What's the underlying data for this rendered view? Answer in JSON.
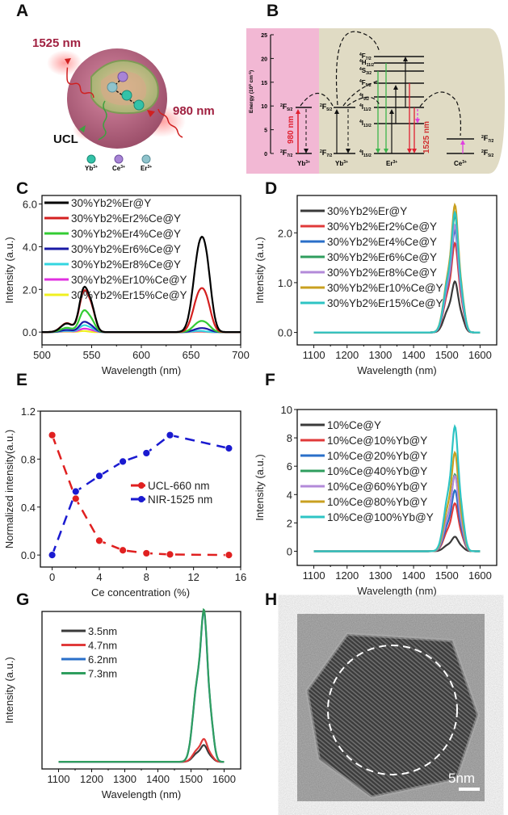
{
  "panels": {
    "A": {
      "letter": "A",
      "labels": {
        "emission_nir": "1525 nm",
        "excitation": "980 nm",
        "ucl": "UCL"
      },
      "ions": [
        {
          "name": "Yb",
          "sup": "3+",
          "color": "#33c2a8"
        },
        {
          "name": "Ce",
          "sup": "3+",
          "color": "#a884d6"
        },
        {
          "name": "Er",
          "sup": "3+",
          "color": "#8fc3cc"
        }
      ]
    },
    "B": {
      "letter": "B",
      "yaxis_label": "Energy (10",
      "yaxis_label_sup": "3",
      "yaxis_label_end": " cm",
      "yaxis_label_sup2": "-1",
      "yaxis_label_close": ")",
      "yticks": [
        "0",
        "5",
        "10",
        "15",
        "20",
        "25"
      ],
      "excitation_label": "980 nm",
      "emission_label": "1525 nm",
      "species": [
        "Yb",
        "Yb",
        "Er",
        "Ce"
      ],
      "species_sup": "3+",
      "levels": {
        "yb_upper": "F",
        "yb_upper_pre": "2",
        "yb_upper_sub": "5/2",
        "yb_lower": "F",
        "yb_lower_pre": "2",
        "yb_lower_sub": "7/2",
        "er": [
          {
            "pre": "4",
            "term": "F",
            "sub": "7/2"
          },
          {
            "pre": "4",
            "term": "H",
            "sub": "11/2"
          },
          {
            "pre": "4",
            "term": "S",
            "sub": "3/2"
          },
          {
            "pre": "4",
            "term": "F",
            "sub": "9/2"
          },
          {
            "pre": "4",
            "term": "I",
            "sub": "9/2"
          },
          {
            "pre": "4",
            "term": "I",
            "sub": "11/2"
          },
          {
            "pre": "4",
            "term": "I",
            "sub": "13/2"
          },
          {
            "pre": "4",
            "term": "I",
            "sub": "15/2"
          }
        ],
        "ce": [
          {
            "pre": "2",
            "term": "F",
            "sub": "7/2"
          },
          {
            "pre": "2",
            "term": "F",
            "sub": "5/2"
          }
        ]
      },
      "colors": {
        "yb_bg": "#f2b8d4",
        "er_bg": "#e0dbc4",
        "excitation": "#e02030",
        "green": "#3cb44b",
        "red": "#e02030",
        "magenta": "#e040e0"
      }
    },
    "H": {
      "letter": "H",
      "scale_bar": "5nm"
    }
  },
  "chart_data": [
    {
      "id": "C",
      "letter": "C",
      "type": "line",
      "title": "",
      "xlabel": "Wavelength (nm)",
      "ylabel": "Intensity (a.u.)",
      "xlim": [
        500,
        700
      ],
      "ylim": [
        -0.6,
        6.4
      ],
      "xticks": [
        "500",
        "550",
        "600",
        "650",
        "700"
      ],
      "yticks": [
        "0.0",
        "2.0",
        "4.0",
        "6.0"
      ],
      "legend": "top-left",
      "series": [
        {
          "name": "30%Yb2%Er@Y",
          "color": "#000000",
          "peaks": [
            [
              525,
              0.4,
              6
            ],
            [
              542,
              1.95,
              4.5
            ],
            [
              550,
              1.0,
              4
            ],
            [
              658,
              3.55,
              6
            ],
            [
              666,
              2.2,
              5
            ]
          ]
        },
        {
          "name": "30%Yb2%Er2%Ce@Y",
          "color": "#d42020",
          "peaks": [
            [
              525,
              0.42,
              6
            ],
            [
              542,
              1.8,
              4.5
            ],
            [
              550,
              0.95,
              4
            ],
            [
              658,
              1.65,
              6
            ],
            [
              666,
              1.0,
              5
            ]
          ]
        },
        {
          "name": "30%Yb2%Er4%Ce@Y",
          "color": "#33cc33",
          "peaks": [
            [
              525,
              0.2,
              6
            ],
            [
              542,
              0.95,
              4.5
            ],
            [
              550,
              0.45,
              4
            ],
            [
              658,
              0.42,
              6
            ],
            [
              666,
              0.25,
              5
            ]
          ]
        },
        {
          "name": "30%Yb2%Er6%Ce@Y",
          "color": "#1a1aa6",
          "peaks": [
            [
              525,
              0.1,
              6
            ],
            [
              542,
              0.45,
              4.5
            ],
            [
              550,
              0.22,
              4
            ],
            [
              658,
              0.15,
              6
            ],
            [
              666,
              0.09,
              5
            ]
          ]
        },
        {
          "name": "30%Yb2%Er8%Ce@Y",
          "color": "#33d6e0",
          "peaks": [
            [
              525,
              0.06,
              6
            ],
            [
              542,
              0.3,
              4.5
            ],
            [
              550,
              0.14,
              4
            ],
            [
              658,
              0.06,
              6
            ]
          ]
        },
        {
          "name": "30%Yb2%Er10%Ce@Y",
          "color": "#e030e0",
          "peaks": [
            [
              525,
              0.04,
              6
            ],
            [
              542,
              0.15,
              4.5
            ],
            [
              550,
              0.07,
              4
            ],
            [
              658,
              0.03,
              6
            ]
          ]
        },
        {
          "name": "30%Yb2%Er15%Ce@Y",
          "color": "#f0f020",
          "peaks": [
            [
              525,
              0.02,
              6
            ],
            [
              542,
              0.05,
              4.5
            ],
            [
              658,
              0.01,
              6
            ]
          ]
        }
      ]
    },
    {
      "id": "D",
      "letter": "D",
      "type": "line",
      "title": "",
      "xlabel": "Wavelength (nm)",
      "ylabel": "Intensity (a.u.)",
      "xlim": [
        1050,
        1650
      ],
      "ylim": [
        -0.25,
        2.75
      ],
      "xticks": [
        "1100",
        "1200",
        "1300",
        "1400",
        "1500",
        "1600"
      ],
      "yticks": [
        "0.0",
        "1.0",
        "2.0"
      ],
      "legend": "top-left",
      "series": [
        {
          "name": "30%Yb2%Er@Y",
          "color": "#3a3a3a",
          "peak": 1.0
        },
        {
          "name": "30%Yb2%Er2%Ce@Y",
          "color": "#e03a3a",
          "peak": 1.75
        },
        {
          "name": "30%Yb2%Er4%Ce@Y",
          "color": "#2a6fc9",
          "peak": 2.0
        },
        {
          "name": "30%Yb2%Er6%Ce@Y",
          "color": "#2f9e5e",
          "peak": 2.3
        },
        {
          "name": "30%Yb2%Er8%Ce@Y",
          "color": "#b38ad9",
          "peak": 2.1
        },
        {
          "name": "30%Yb2%Er10%Ce@Y",
          "color": "#c9a020",
          "peak": 2.5
        },
        {
          "name": "30%Yb2%Er15%Ce@Y",
          "color": "#2ec4c4",
          "peak": 2.35
        }
      ],
      "peak_center": 1525
    },
    {
      "id": "E",
      "letter": "E",
      "type": "scatter",
      "title": "",
      "xlabel": "Ce concentration (%)",
      "ylabel": "Normalized intensity(a.u.)",
      "xlim": [
        -1,
        16
      ],
      "ylim": [
        -0.1,
        1.2
      ],
      "xticks": [
        "0",
        "4",
        "8",
        "12",
        "16"
      ],
      "xtick_values": [
        0,
        4,
        8,
        12,
        16
      ],
      "yticks": [
        "0.0",
        "0.4",
        "0.8",
        "1.2"
      ],
      "ytick_values": [
        0.0,
        0.4,
        0.8,
        1.2
      ],
      "legend": "center-right",
      "x": [
        0,
        2,
        4,
        6,
        8,
        10,
        15
      ],
      "series": [
        {
          "name": "UCL-660 nm",
          "color": "#e02020",
          "values": [
            1.0,
            0.47,
            0.12,
            0.04,
            0.015,
            0.005,
            0.0
          ]
        },
        {
          "name": "NIR-1525 nm",
          "color": "#1a1ad0",
          "values": [
            0.0,
            0.53,
            0.66,
            0.78,
            0.85,
            1.0,
            0.89
          ]
        }
      ]
    },
    {
      "id": "F",
      "letter": "F",
      "type": "line",
      "title": "",
      "xlabel": "Wavelength (nm)",
      "ylabel": "Intensity (a.u.)",
      "xlim": [
        1050,
        1650
      ],
      "ylim": [
        -1,
        10
      ],
      "xticks": [
        "1100",
        "1200",
        "1300",
        "1400",
        "1500",
        "1600"
      ],
      "yticks": [
        "0",
        "2",
        "4",
        "6",
        "8",
        "10"
      ],
      "legend": "top-left",
      "series": [
        {
          "name": "10%Ce@Y",
          "color": "#3a3a3a",
          "peak": 1.0
        },
        {
          "name": "10%Ce@10%Yb@Y",
          "color": "#e03a3a",
          "peak": 3.3
        },
        {
          "name": "10%Ce@20%Yb@Y",
          "color": "#2a6fc9",
          "peak": 4.2
        },
        {
          "name": "10%Ce@40%Yb@Y",
          "color": "#2f9e5e",
          "peak": 5.3
        },
        {
          "name": "10%Ce@60%Yb@Y",
          "color": "#b38ad9",
          "peak": 5.2
        },
        {
          "name": "10%Ce@80%Yb@Y",
          "color": "#c9a020",
          "peak": 6.8
        },
        {
          "name": "10%Ce@100%Yb@Y",
          "color": "#2ec4c4",
          "peak": 8.6
        }
      ],
      "peak_center": 1525
    },
    {
      "id": "G",
      "letter": "G",
      "type": "line",
      "title": "",
      "xlabel": "Wavelength (nm)",
      "ylabel": "Intensity (a.u.)",
      "xlim": [
        1050,
        1650
      ],
      "ylim": [
        -0.05,
        1.05
      ],
      "xticks": [
        "1100",
        "1200",
        "1300",
        "1400",
        "1500",
        "1600"
      ],
      "yticks": [],
      "legend": "top-left",
      "series": [
        {
          "name": "3.5nm",
          "color": "#3a3a3a",
          "peak": 0.11
        },
        {
          "name": "4.7nm",
          "color": "#e03a3a",
          "peak": 0.15
        },
        {
          "name": "6.2nm",
          "color": "#2a6fc9",
          "peak": 0.99
        },
        {
          "name": "7.3nm",
          "color": "#2f9e5e",
          "peak": 1.0
        }
      ],
      "peak_center": 1540
    }
  ]
}
